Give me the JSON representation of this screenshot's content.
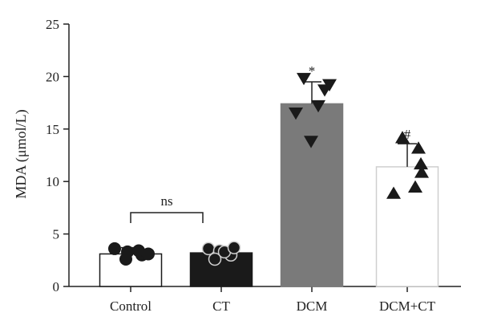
{
  "chart_data": {
    "type": "bar",
    "ylabel": "MDA (μmol/L)",
    "ylim": [
      0,
      25
    ],
    "yticks": [
      "0",
      "5",
      "10",
      "15",
      "20",
      "25"
    ],
    "categories": [
      "Control",
      "CT",
      "DCM",
      "DCM+CT"
    ],
    "values": [
      3.1,
      3.2,
      17.4,
      11.4
    ],
    "errors": [
      0.6,
      0.5,
      2.1,
      2.2
    ],
    "bar_colors": [
      "#ffffff",
      "#1a1a1a",
      "#7a7a7a",
      "#ffffff"
    ],
    "bar_edge_colors": [
      "#1a1a1a",
      "#1a1a1a",
      "#7a7a7a",
      "#cfcfcf"
    ],
    "marker_shapes": [
      "circle-filled",
      "circle-open",
      "triangle-down",
      "triangle-up"
    ],
    "points": [
      [
        3.6,
        3.3,
        3.0,
        2.6,
        3.4,
        3.1
      ],
      [
        3.6,
        3.4,
        3.0,
        2.6,
        3.3,
        3.7
      ],
      [
        19.8,
        17.2,
        16.5,
        18.7,
        13.8,
        19.2
      ],
      [
        14.2,
        13.2,
        9.5,
        10.9,
        8.9,
        11.7
      ]
    ],
    "annotations": {
      "sig_bracket_label": "ns",
      "dcm_marker": "*",
      "dcm_ct_marker": "#"
    }
  }
}
